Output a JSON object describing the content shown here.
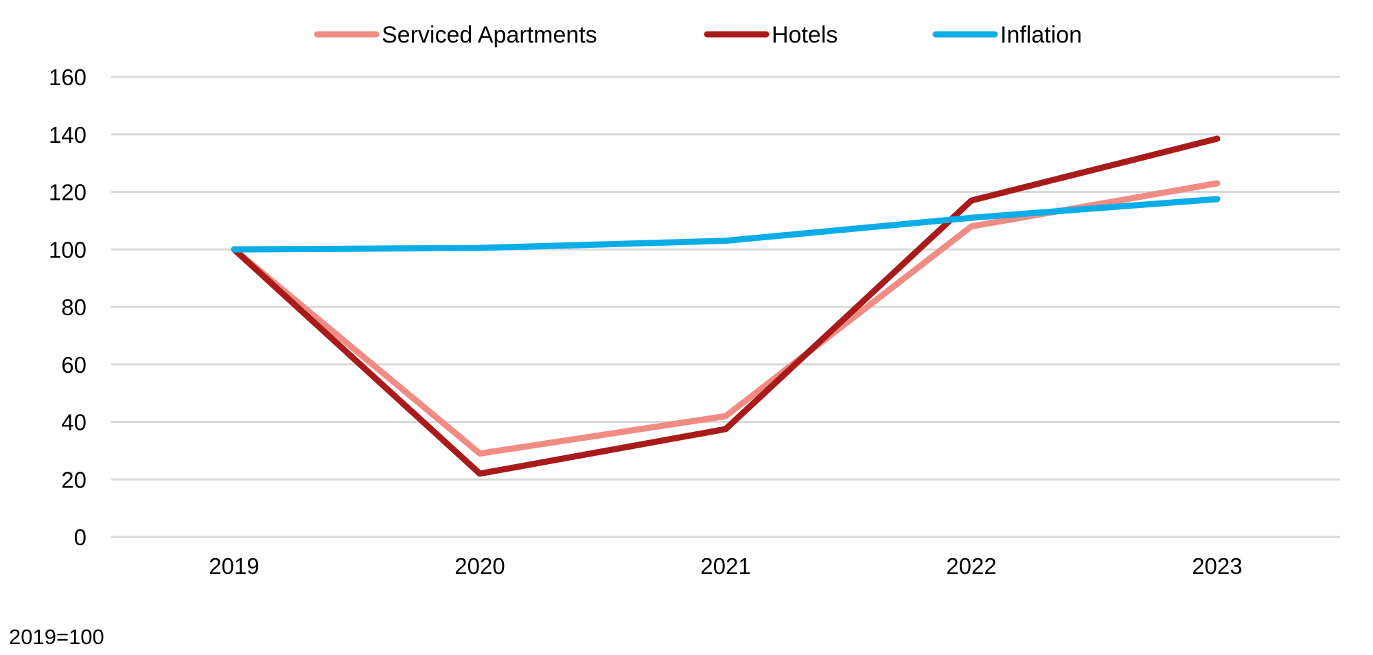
{
  "footnote": "2019=100",
  "chart_data": {
    "type": "line",
    "title": "",
    "xlabel": "",
    "ylabel": "",
    "categories": [
      "2019",
      "2020",
      "2021",
      "2022",
      "2023"
    ],
    "ylim": [
      0,
      160
    ],
    "yticks": [
      0,
      20,
      40,
      60,
      80,
      100,
      120,
      140,
      160
    ],
    "grid": true,
    "legend_position": "top",
    "series": [
      {
        "name": "Serviced Apartments",
        "color": "#F08C84",
        "values": [
          100,
          29,
          42,
          108,
          123
        ]
      },
      {
        "name": "Hotels",
        "color": "#A91B1B",
        "values": [
          100,
          22,
          37.5,
          117,
          138.5
        ]
      },
      {
        "name": "Inflation",
        "color": "#0AADE8",
        "values": [
          100,
          100.5,
          103,
          111,
          117.5
        ]
      }
    ]
  }
}
